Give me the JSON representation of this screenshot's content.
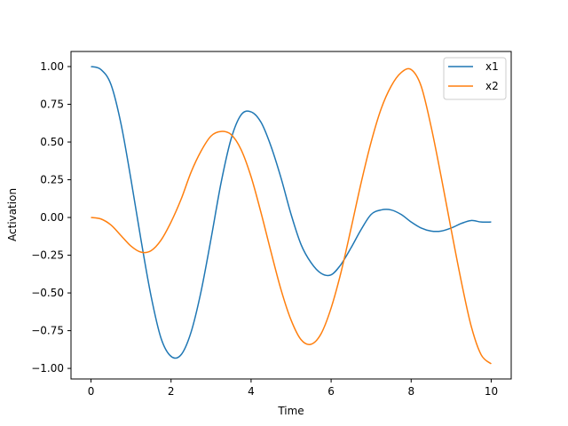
{
  "chart_data": {
    "type": "line",
    "title": "",
    "xlabel": "Time",
    "ylabel": "Activation",
    "xlim": [
      -0.5,
      10.5
    ],
    "ylim": [
      -1.07,
      1.1
    ],
    "xticks": [
      0,
      2,
      4,
      6,
      8,
      10
    ],
    "xtick_labels": [
      "0",
      "2",
      "4",
      "6",
      "8",
      "10"
    ],
    "yticks": [
      1.0,
      0.75,
      0.5,
      0.25,
      0.0,
      -0.25,
      -0.5,
      -0.75,
      -1.0
    ],
    "ytick_labels": [
      "1.00",
      "0.75",
      "0.50",
      "0.25",
      "0.00",
      "−0.25",
      "−0.50",
      "−0.75",
      "−1.00"
    ],
    "grid": false,
    "legend_position": "top-right",
    "x": [
      0,
      0.25,
      0.5,
      0.75,
      1.0,
      1.25,
      1.5,
      1.75,
      2.0,
      2.25,
      2.5,
      2.75,
      3.0,
      3.25,
      3.5,
      3.75,
      4.0,
      4.25,
      4.5,
      4.75,
      5.0,
      5.25,
      5.5,
      5.75,
      6.0,
      6.25,
      6.5,
      6.75,
      7.0,
      7.25,
      7.5,
      7.75,
      8.0,
      8.25,
      8.5,
      8.75,
      9.0,
      9.25,
      9.5,
      9.75,
      10.0
    ],
    "series": [
      {
        "name": "x1",
        "color": "#1f77b4",
        "values": [
          1.0,
          0.98,
          0.88,
          0.62,
          0.25,
          -0.15,
          -0.52,
          -0.8,
          -0.92,
          -0.91,
          -0.76,
          -0.49,
          -0.14,
          0.23,
          0.52,
          0.68,
          0.7,
          0.63,
          0.47,
          0.26,
          0.02,
          -0.18,
          -0.3,
          -0.37,
          -0.38,
          -0.31,
          -0.2,
          -0.08,
          0.02,
          0.05,
          0.05,
          0.02,
          -0.03,
          -0.07,
          -0.09,
          -0.09,
          -0.07,
          -0.04,
          -0.02,
          -0.03,
          -0.03
        ]
      },
      {
        "name": "x2",
        "color": "#ff7f0e",
        "values": [
          0.0,
          -0.01,
          -0.05,
          -0.12,
          -0.19,
          -0.23,
          -0.22,
          -0.15,
          -0.03,
          0.12,
          0.3,
          0.44,
          0.54,
          0.57,
          0.55,
          0.45,
          0.27,
          0.03,
          -0.23,
          -0.48,
          -0.68,
          -0.81,
          -0.84,
          -0.77,
          -0.6,
          -0.36,
          -0.07,
          0.23,
          0.5,
          0.72,
          0.87,
          0.96,
          0.98,
          0.87,
          0.6,
          0.27,
          -0.08,
          -0.42,
          -0.72,
          -0.91,
          -0.97
        ]
      }
    ]
  }
}
